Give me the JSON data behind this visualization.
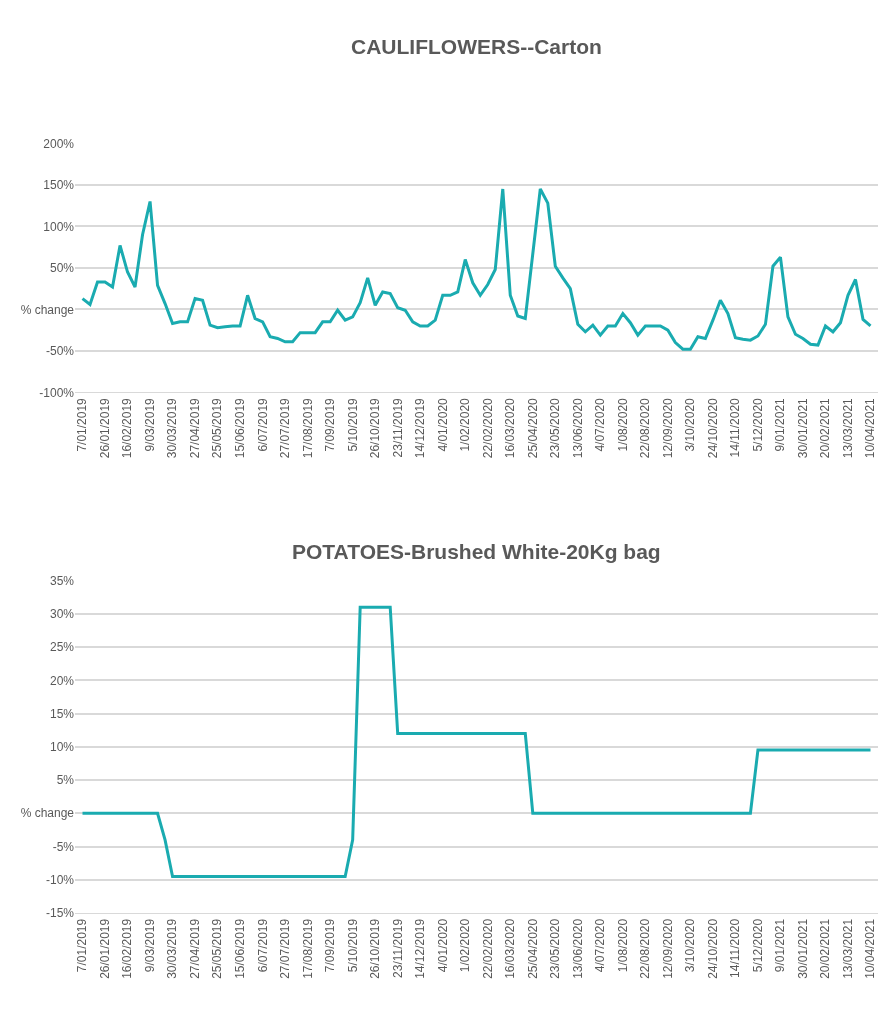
{
  "chart_data": [
    {
      "type": "line",
      "title": "CAULIFLOWERS--Carton",
      "categories": [
        "7/01/2019",
        null,
        null,
        "26/01/2019",
        null,
        null,
        "16/02/2019",
        null,
        null,
        "9/03/2019",
        null,
        null,
        "30/03/2019",
        null,
        null,
        "27/04/2019",
        null,
        null,
        "25/05/2019",
        null,
        null,
        "15/06/2019",
        null,
        null,
        "6/07/2019",
        null,
        null,
        "27/07/2019",
        null,
        null,
        "17/08/2019",
        null,
        null,
        "7/09/2019",
        null,
        null,
        "5/10/2019",
        null,
        null,
        "26/10/2019",
        null,
        null,
        "23/11/2019",
        null,
        null,
        "14/12/2019",
        null,
        null,
        "4/01/2020",
        null,
        null,
        "1/02/2020",
        null,
        null,
        "22/02/2020",
        null,
        null,
        "16/03/2020",
        null,
        null,
        "25/04/2020",
        null,
        null,
        "23/05/2020",
        null,
        null,
        "13/06/2020",
        null,
        null,
        "4/07/2020",
        null,
        null,
        "1/08/2020",
        null,
        null,
        "22/08/2020",
        null,
        null,
        "12/09/2020",
        null,
        null,
        "3/10/2020",
        null,
        null,
        "24/10/2020",
        null,
        null,
        "14/11/2020",
        null,
        null,
        "5/12/2020",
        null,
        null,
        "9/01/2021",
        null,
        null,
        "30/01/2021",
        null,
        null,
        "20/02/2021",
        null,
        null,
        "13/03/2021",
        null,
        null,
        "10/04/2021"
      ],
      "series": [
        {
          "color": "#1aabb0",
          "values": [
            13,
            6,
            33,
            33,
            27,
            77,
            45,
            27,
            90,
            130,
            29,
            7,
            -17,
            -15,
            -15,
            13,
            11,
            -19,
            -22,
            -21,
            -20,
            -20,
            17,
            -11,
            -15,
            -33,
            -35,
            -39,
            -39,
            -28,
            -28,
            -28,
            -15,
            -15,
            -1,
            -13,
            -9,
            8,
            38,
            5,
            21,
            19,
            2,
            -1,
            -15,
            -20,
            -20,
            -13,
            17,
            17,
            21,
            60,
            32,
            17,
            30,
            48,
            145,
            17,
            -8,
            -11,
            67,
            145,
            128,
            52,
            38,
            25,
            -18,
            -27,
            -19,
            -31,
            -20,
            -20,
            -5,
            -16,
            -31,
            -20,
            -20,
            -20,
            -25,
            -40,
            -48,
            -48,
            -33,
            -35,
            -13,
            11,
            -5,
            -34,
            -36,
            -37,
            -32,
            -18,
            52,
            63,
            -9,
            -30,
            -35,
            -42,
            -43,
            -20,
            -27,
            -16,
            17,
            36,
            -12,
            -20
          ]
        }
      ],
      "ylim": [
        -100,
        200
      ],
      "yticks": [
        {
          "value": -100,
          "label": "-100%"
        },
        {
          "value": -50,
          "label": "-50%"
        },
        {
          "value": 0,
          "label": "% change"
        },
        {
          "value": 50,
          "label": "50%"
        },
        {
          "value": 100,
          "label": "100%"
        },
        {
          "value": 150,
          "label": "150%"
        },
        {
          "value": 200,
          "label": "200%"
        }
      ],
      "grid": "y",
      "legend": false,
      "marker": "none",
      "line_style": "solid"
    },
    {
      "type": "line",
      "title": "POTATOES-Brushed White-20Kg bag",
      "categories": [
        "7/01/2019",
        null,
        null,
        "26/01/2019",
        null,
        null,
        "16/02/2019",
        null,
        null,
        "9/03/2019",
        null,
        null,
        "30/03/2019",
        null,
        null,
        "27/04/2019",
        null,
        null,
        "25/05/2019",
        null,
        null,
        "15/06/2019",
        null,
        null,
        "6/07/2019",
        null,
        null,
        "27/07/2019",
        null,
        null,
        "17/08/2019",
        null,
        null,
        "7/09/2019",
        null,
        null,
        "5/10/2019",
        null,
        null,
        "26/10/2019",
        null,
        null,
        "23/11/2019",
        null,
        null,
        "14/12/2019",
        null,
        null,
        "4/01/2020",
        null,
        null,
        "1/02/2020",
        null,
        null,
        "22/02/2020",
        null,
        null,
        "16/03/2020",
        null,
        null,
        "25/04/2020",
        null,
        null,
        "23/05/2020",
        null,
        null,
        "13/06/2020",
        null,
        null,
        "4/07/2020",
        null,
        null,
        "1/08/2020",
        null,
        null,
        "22/08/2020",
        null,
        null,
        "12/09/2020",
        null,
        null,
        "3/10/2020",
        null,
        null,
        "24/10/2020",
        null,
        null,
        "14/11/2020",
        null,
        null,
        "5/12/2020",
        null,
        null,
        "9/01/2021",
        null,
        null,
        "30/01/2021",
        null,
        null,
        "20/02/2021",
        null,
        null,
        "13/03/2021",
        null,
        null,
        "10/04/2021"
      ],
      "series": [
        {
          "color": "#1aabb0",
          "values": [
            0,
            0,
            0,
            0,
            0,
            0,
            0,
            0,
            0,
            0,
            0,
            -4,
            -9.5,
            -9.5,
            -9.5,
            -9.5,
            -9.5,
            -9.5,
            -9.5,
            -9.5,
            -9.5,
            -9.5,
            -9.5,
            -9.5,
            -9.5,
            -9.5,
            -9.5,
            -9.5,
            -9.5,
            -9.5,
            -9.5,
            -9.5,
            -9.5,
            -9.5,
            -9.5,
            -9.5,
            -4,
            31,
            31,
            31,
            31,
            31,
            12,
            12,
            12,
            12,
            12,
            12,
            12,
            12,
            12,
            12,
            12,
            12,
            12,
            12,
            12,
            12,
            12,
            12,
            0,
            0,
            0,
            0,
            0,
            0,
            0,
            0,
            0,
            0,
            0,
            0,
            0,
            0,
            0,
            0,
            0,
            0,
            0,
            0,
            0,
            0,
            0,
            0,
            0,
            0,
            0,
            0,
            0,
            0,
            9.5,
            9.5,
            9.5,
            9.5,
            9.5,
            9.5,
            9.5,
            9.5,
            9.5,
            9.5,
            9.5,
            9.5,
            9.5,
            9.5,
            9.5,
            9.5
          ]
        }
      ],
      "ylim": [
        -15,
        35
      ],
      "yticks": [
        {
          "value": -15,
          "label": "-15%"
        },
        {
          "value": -10,
          "label": "-10%"
        },
        {
          "value": -5,
          "label": "-5%"
        },
        {
          "value": 0,
          "label": "% change"
        },
        {
          "value": 5,
          "label": "5%"
        },
        {
          "value": 10,
          "label": "10%"
        },
        {
          "value": 15,
          "label": "15%"
        },
        {
          "value": 20,
          "label": "20%"
        },
        {
          "value": 25,
          "label": "25%"
        },
        {
          "value": 30,
          "label": "30%"
        },
        {
          "value": 35,
          "label": "35%"
        }
      ],
      "grid": "y",
      "legend": false,
      "marker": "none",
      "line_style": "solid"
    }
  ]
}
